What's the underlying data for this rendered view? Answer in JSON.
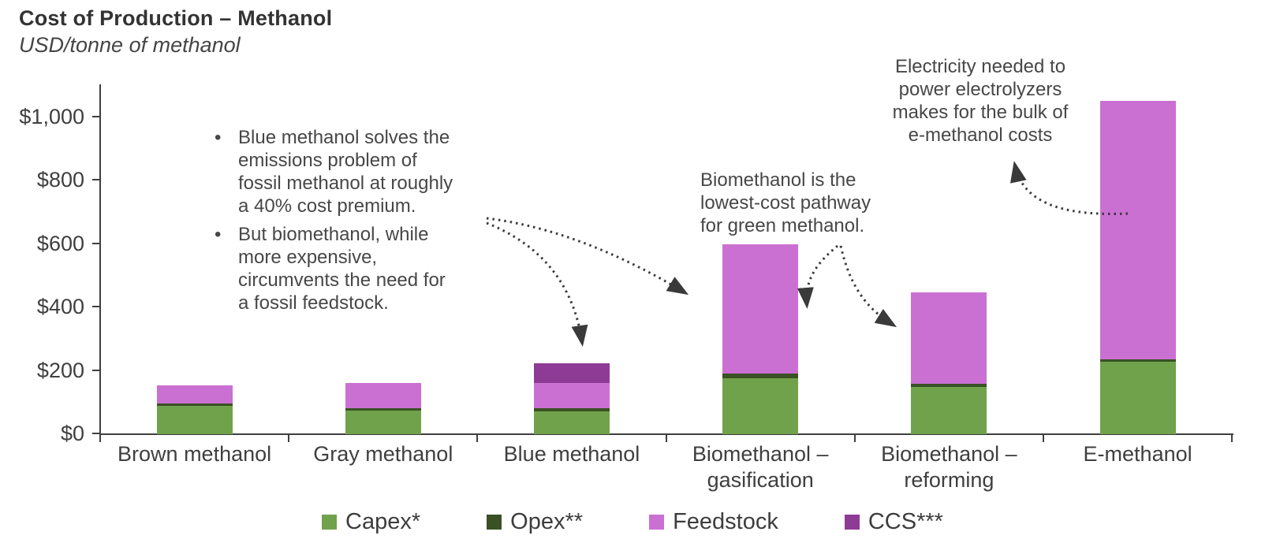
{
  "header": {
    "title": "Cost of Production – Methanol",
    "subtitle": "USD/tonne of methanol"
  },
  "glyphs": {
    "bullet": "•"
  },
  "colors": {
    "capex": "#70A24B",
    "opex": "#3A5124",
    "feedstock": "#CB70D3",
    "ccs": "#8E3B96",
    "axis": "#3f3f3f",
    "text": "#474747",
    "arrow": "#3a3a3a"
  },
  "chart_data": {
    "type": "bar",
    "stacked": true,
    "title": "Cost of Production – Methanol",
    "ylabel": "USD/tonne of methanol",
    "grid": false,
    "legend_position": "bottom",
    "categories": [
      "Brown methanol",
      "Gray methanol",
      "Blue methanol",
      "Biomethanol –\ngasification",
      "Biomethanol –\nreforming",
      "E-methanol"
    ],
    "series": [
      {
        "name": "Capex*",
        "color": "#70A24B",
        "values": [
          90,
          75,
          73,
          177,
          148,
          228
        ]
      },
      {
        "name": "Opex**",
        "color": "#3A5124",
        "values": [
          8,
          8,
          8,
          15,
          10,
          8
        ]
      },
      {
        "name": "Feedstock",
        "color": "#CB70D3",
        "values": [
          57,
          79,
          80,
          406,
          290,
          815
        ]
      },
      {
        "name": "CCS***",
        "color": "#8E3B96",
        "values": [
          0,
          0,
          62,
          0,
          0,
          0
        ]
      }
    ],
    "y_axis": {
      "range": [
        0,
        1100
      ],
      "ticks": [
        {
          "label": "$0",
          "value": 0
        },
        {
          "label": "$200",
          "value": 200
        },
        {
          "label": "$400",
          "value": 400
        },
        {
          "label": "$600",
          "value": 600
        },
        {
          "label": "$800",
          "value": 800
        },
        {
          "label": "$1,000",
          "value": 1000
        }
      ]
    },
    "annotations": {
      "blue_methanol_bullets": {
        "items": [
          "Blue methanol solves the\nemissions problem of\nfossil methanol at roughly\na 40% cost premium.",
          "But biomethanol, while\nmore expensive,\ncircumvents the need for\na fossil feedstock."
        ]
      },
      "biomethanol_note": "Biomethanol is the\nlowest-cost pathway\nfor green methanol.",
      "emethanol_note": "Electricity needed to\npower electrolyzers\nmakes for the bulk of\ne-methanol costs"
    }
  }
}
